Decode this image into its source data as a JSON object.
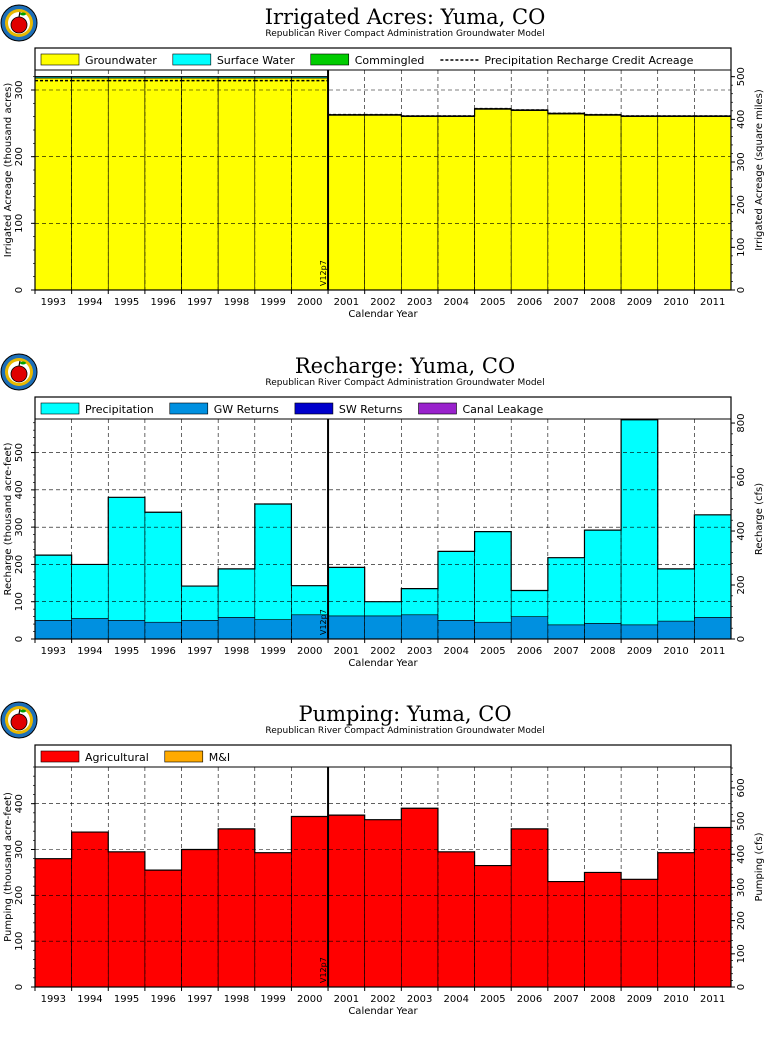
{
  "logo": {
    "icon": "apple-logo-icon",
    "colors": {
      "ring_outer": "#1d6fb8",
      "ring_inner": "#e8b800",
      "apple": "#e00000"
    }
  },
  "version_label": "V12p7",
  "chart_data": [
    {
      "type": "bar",
      "title": "Irrigated Acres: Yuma, CO",
      "subtitle": "Republican River Compact Administration Groundwater Model",
      "xlabel": "Calendar Year",
      "ylabel": "Irrigated Acreage (thousand acres)",
      "y2label": "Irrigated Acreage (square miles)",
      "categories": [
        "1993",
        "1994",
        "1995",
        "1996",
        "1997",
        "1998",
        "1999",
        "2000",
        "2001",
        "2002",
        "2003",
        "2004",
        "2005",
        "2006",
        "2007",
        "2008",
        "2009",
        "2010",
        "2011"
      ],
      "ylim": [
        0,
        330
      ],
      "yticks": [
        0,
        100,
        200,
        300
      ],
      "y2lim": [
        0,
        515.6
      ],
      "y2ticks": [
        0,
        100,
        200,
        300,
        400,
        500
      ],
      "grid": true,
      "legend_position": "top",
      "series": [
        {
          "name": "Groundwater",
          "color": "#ffff00",
          "values": [
            318,
            318,
            318,
            318,
            318,
            318,
            318,
            318,
            262,
            262,
            260,
            260,
            271,
            269,
            264,
            262,
            260,
            260,
            260
          ]
        },
        {
          "name": "Surface Water",
          "color": "#00ffff",
          "values": [
            2,
            2,
            2,
            2,
            2,
            2,
            2,
            2,
            1,
            1,
            1,
            1,
            1,
            1,
            1,
            1,
            1,
            1,
            1
          ]
        },
        {
          "name": "Commingled",
          "color": "#00cc00",
          "values": [
            0,
            0,
            0,
            0,
            0,
            0,
            0,
            0,
            0,
            0,
            0,
            0,
            0,
            0,
            0,
            0,
            0,
            0,
            0
          ]
        }
      ],
      "lines": [
        {
          "name": "Precipitation Recharge Credit Acreage",
          "style": "dashed",
          "color": "#000000",
          "values": [
            314,
            314,
            314,
            314,
            314,
            314,
            314,
            314,
            263,
            263,
            261,
            261,
            272,
            270,
            265,
            263,
            261,
            261,
            261
          ]
        }
      ],
      "annotation_year_index": 8
    },
    {
      "type": "bar",
      "title": "Recharge: Yuma, CO",
      "subtitle": "Republican River Compact Administration Groundwater Model",
      "xlabel": "Calendar Year",
      "ylabel": "Recharge (thousand acre-feet)",
      "y2label": "Recharge (cfs)",
      "categories": [
        "1993",
        "1994",
        "1995",
        "1996",
        "1997",
        "1998",
        "1999",
        "2000",
        "2001",
        "2002",
        "2003",
        "2004",
        "2005",
        "2006",
        "2007",
        "2008",
        "2009",
        "2010",
        "2011"
      ],
      "ylim": [
        0,
        590
      ],
      "yticks": [
        0,
        100,
        200,
        300,
        400,
        500
      ],
      "y2lim": [
        0,
        815
      ],
      "y2ticks": [
        0,
        200,
        400,
        600,
        800
      ],
      "grid": true,
      "legend_position": "top",
      "series": [
        {
          "name": "GW Returns",
          "color": "#0090e0",
          "values": [
            50,
            55,
            50,
            45,
            50,
            58,
            52,
            65,
            62,
            62,
            65,
            50,
            45,
            60,
            38,
            42,
            38,
            48,
            58
          ]
        },
        {
          "name": "Precipitation",
          "color": "#00ffff",
          "values": [
            175,
            145,
            330,
            295,
            92,
            130,
            310,
            78,
            130,
            38,
            70,
            185,
            243,
            70,
            180,
            250,
            550,
            140,
            275
          ]
        },
        {
          "name": "SW Returns",
          "color": "#0000cc",
          "values": [
            0,
            0,
            0,
            0,
            0,
            0,
            0,
            0,
            0,
            0,
            0,
            0,
            0,
            0,
            0,
            0,
            0,
            0,
            0
          ]
        },
        {
          "name": "Canal Leakage",
          "color": "#9922cc",
          "values": [
            0,
            0,
            0,
            0,
            0,
            0,
            0,
            0,
            0,
            0,
            0,
            0,
            0,
            0,
            0,
            0,
            0,
            0,
            0
          ]
        }
      ],
      "legend_order": [
        "Precipitation",
        "GW Returns",
        "SW Returns",
        "Canal Leakage"
      ],
      "annotation_year_index": 8
    },
    {
      "type": "bar",
      "title": "Pumping: Yuma, CO",
      "subtitle": "Republican River Compact Administration Groundwater Model",
      "xlabel": "Calendar Year",
      "ylabel": "Pumping (thousand acre-feet)",
      "y2label": "Pumping (cfs)",
      "categories": [
        "1993",
        "1994",
        "1995",
        "1996",
        "1997",
        "1998",
        "1999",
        "2000",
        "2001",
        "2002",
        "2003",
        "2004",
        "2005",
        "2006",
        "2007",
        "2008",
        "2009",
        "2010",
        "2011"
      ],
      "ylim": [
        0,
        480
      ],
      "yticks": [
        0,
        100,
        200,
        300,
        400
      ],
      "y2lim": [
        0,
        663
      ],
      "y2ticks": [
        0,
        100,
        200,
        300,
        400,
        500,
        600
      ],
      "grid": true,
      "legend_position": "top",
      "series": [
        {
          "name": "Agricultural",
          "color": "#ff0000",
          "values": [
            280,
            338,
            295,
            255,
            300,
            345,
            293,
            372,
            375,
            365,
            390,
            295,
            265,
            345,
            230,
            250,
            235,
            293,
            348
          ]
        },
        {
          "name": "M&I",
          "color": "#ffaa00",
          "values": [
            0,
            0,
            0,
            0,
            0,
            0,
            0,
            0,
            0,
            0,
            0,
            0,
            0,
            0,
            0,
            0,
            0,
            0,
            0
          ]
        }
      ],
      "annotation_year_index": 8
    }
  ]
}
